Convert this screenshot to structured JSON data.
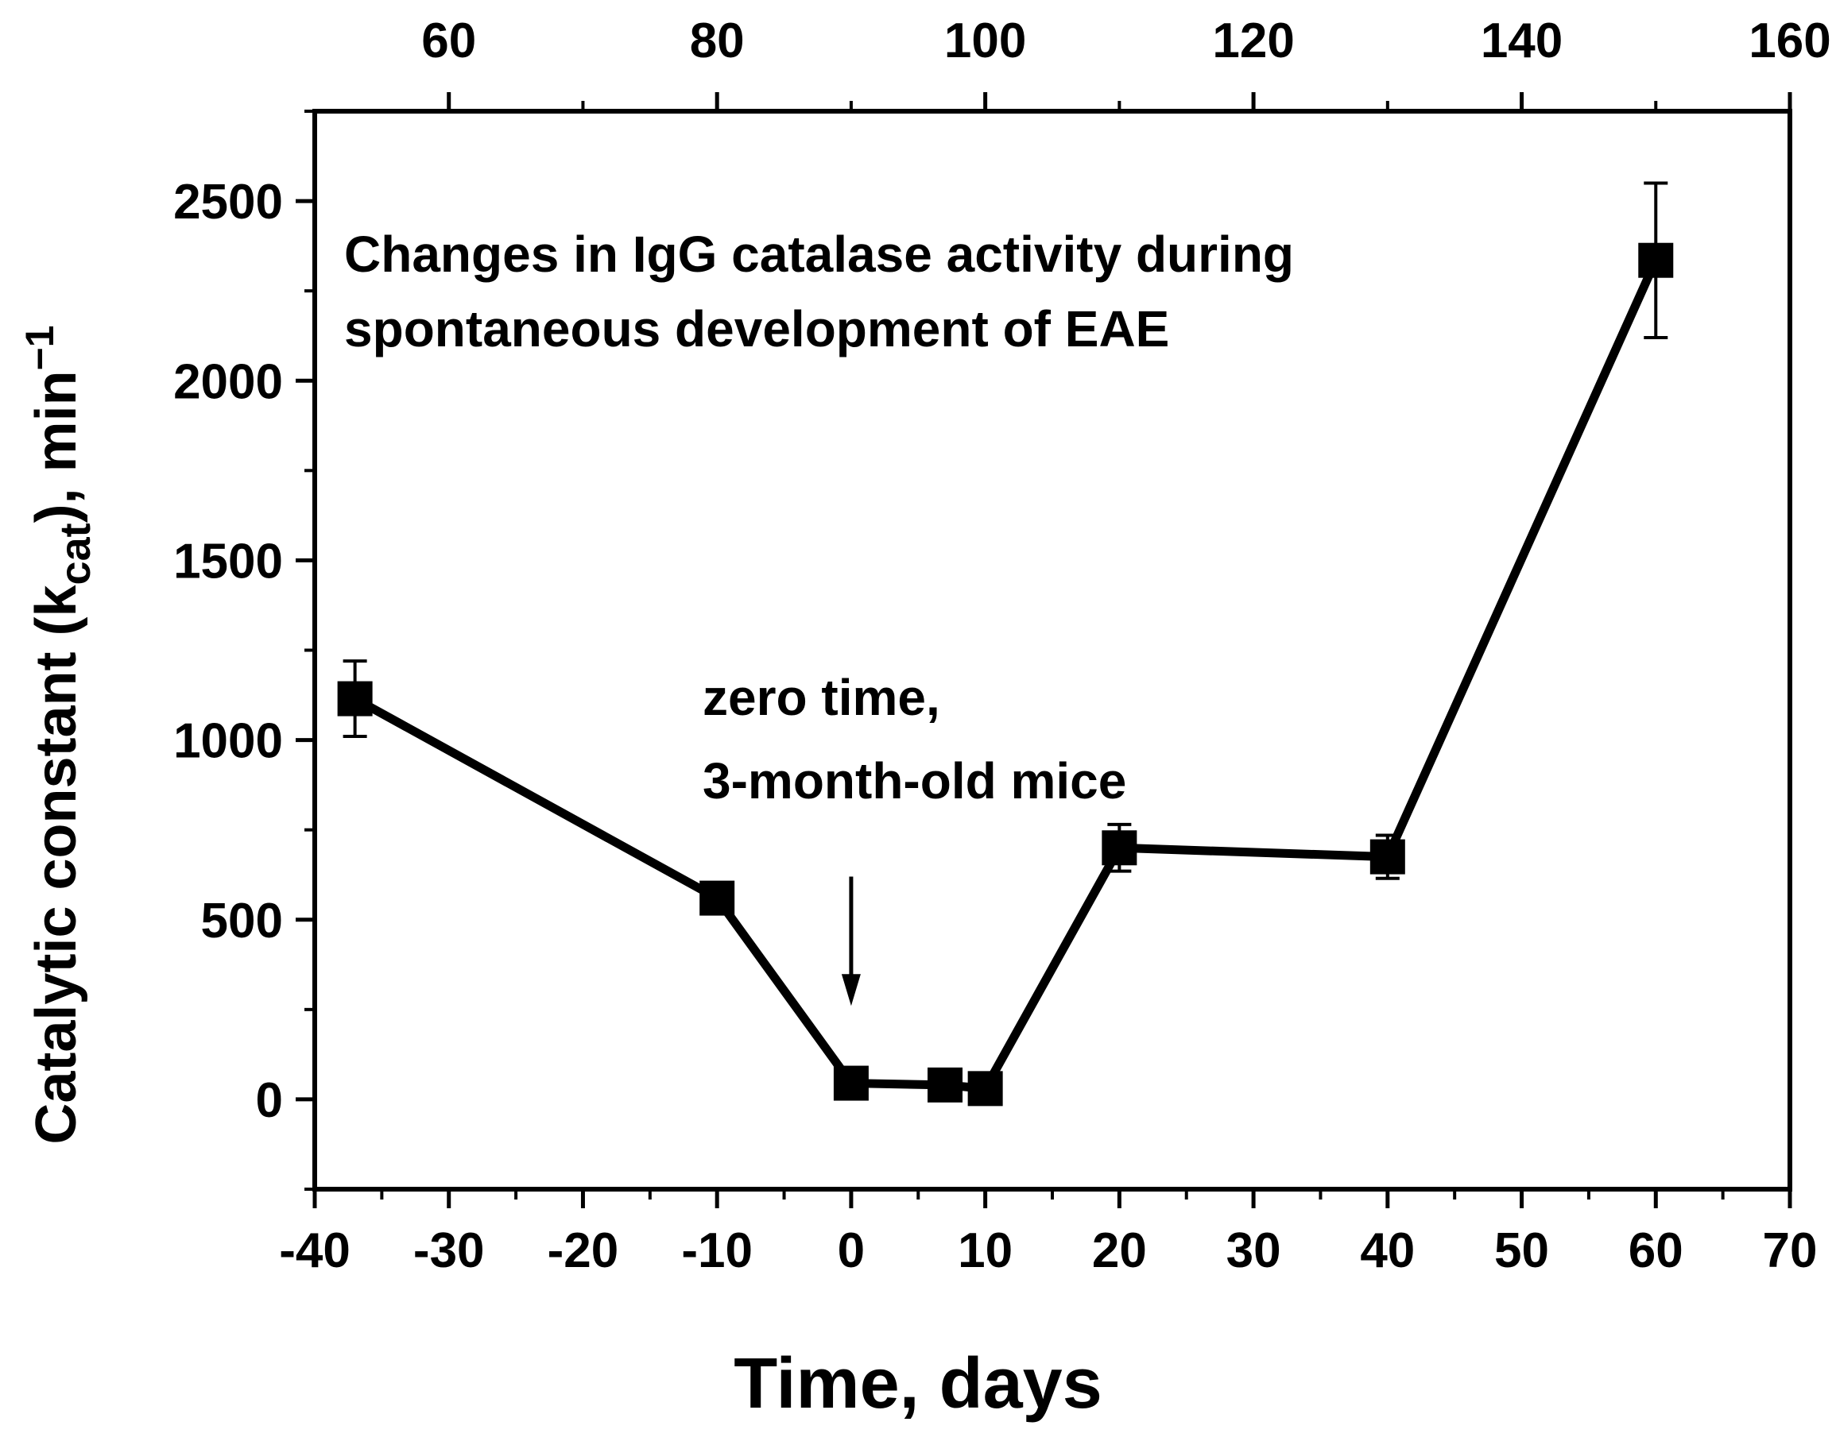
{
  "chart_data": {
    "type": "line",
    "title": "",
    "annotation_title": [
      "Changes in  IgG catalase activity  during",
      "spontaneous development of EAE"
    ],
    "annotation_zero": [
      "zero time,",
      "3-month-old mice"
    ],
    "xlabel": "Time, days",
    "ylabel_parts": {
      "main": "Catalytic constant (k",
      "subscript": "cat",
      "close": "), min",
      "superscript": "−1"
    },
    "xlim": [
      -40,
      70
    ],
    "ylim": [
      -250,
      2750
    ],
    "x_ticks": [
      -40,
      -30,
      -20,
      -10,
      0,
      10,
      20,
      30,
      40,
      50,
      60,
      70
    ],
    "x_tick_labels": [
      "-40",
      "-30",
      "-20",
      "-10",
      "0",
      "10",
      "20",
      "30",
      "40",
      "50",
      "60",
      "70"
    ],
    "y_ticks": [
      0,
      500,
      1000,
      1500,
      2000,
      2500
    ],
    "y_tick_labels": [
      "0",
      "500",
      "1000",
      "1500",
      "2000",
      "2500"
    ],
    "top_axis": {
      "ticks": [
        60,
        80,
        100,
        120,
        140,
        160
      ],
      "tick_labels": [
        "60",
        "80",
        "100",
        "120",
        "140",
        "160"
      ],
      "offset_days": 90
    },
    "series": [
      {
        "name": "IgG catalase activity",
        "x": [
          -37,
          -10,
          0,
          7,
          10,
          20,
          40,
          60
        ],
        "y": [
          1115,
          560,
          45,
          40,
          30,
          700,
          675,
          2335
        ],
        "err": [
          105,
          40,
          0,
          0,
          0,
          65,
          60,
          215
        ]
      }
    ],
    "arrow": {
      "x": 0,
      "y_from": 620,
      "y_to": 260
    },
    "grid": false
  }
}
